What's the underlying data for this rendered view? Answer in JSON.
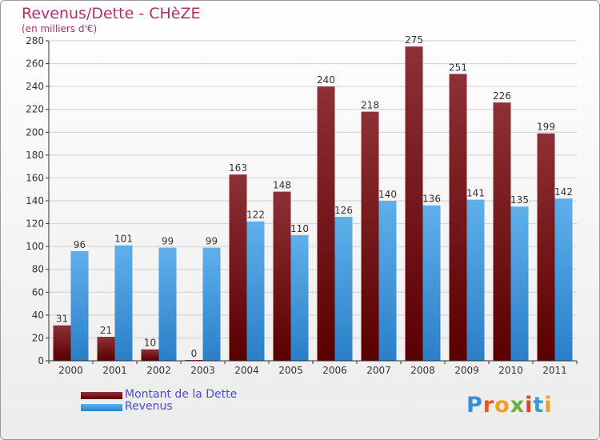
{
  "title": "Revenus/Dette - CHèZE",
  "subtitle": "(en milliers d'€)",
  "brand": [
    "P",
    "r",
    "o",
    "x",
    "i",
    "t",
    "i"
  ],
  "colors": {
    "debt_top": "#8e3036",
    "debt_bottom": "#5a0000",
    "revenue_top": "#5fb0ea",
    "revenue_bottom": "#2a7fc8",
    "grid": "#d0d0d0",
    "axis": "#333333"
  },
  "chart_data": {
    "type": "bar",
    "categories": [
      "2000",
      "2001",
      "2002",
      "2003",
      "2004",
      "2005",
      "2006",
      "2007",
      "2008",
      "2009",
      "2010",
      "2011"
    ],
    "series": [
      {
        "name": "Montant de la Dette",
        "values": [
          31,
          21,
          10,
          0,
          163,
          148,
          240,
          218,
          275,
          251,
          226,
          199
        ]
      },
      {
        "name": "Revenus",
        "values": [
          96,
          101,
          99,
          99,
          122,
          110,
          126,
          140,
          136,
          141,
          135,
          142
        ]
      }
    ],
    "ylim": [
      0,
      280
    ],
    "yticks": [
      0,
      20,
      40,
      60,
      80,
      100,
      120,
      140,
      160,
      180,
      200,
      220,
      240,
      260,
      280
    ],
    "grid": true,
    "legend": "bottom-left"
  }
}
